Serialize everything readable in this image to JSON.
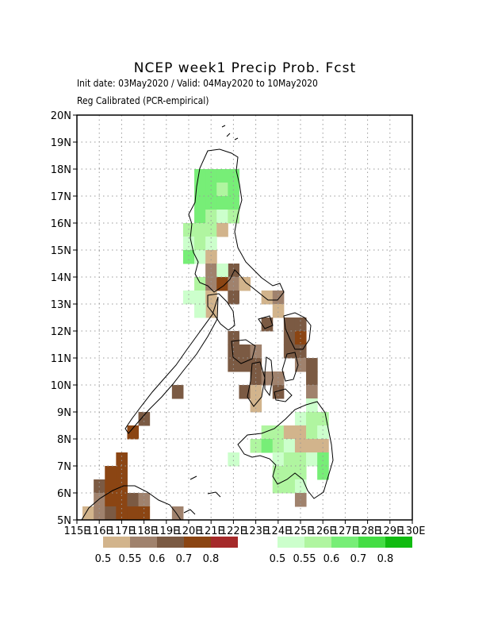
{
  "title": "NCEP week1 Precip Prob. Fcst",
  "subtitle_dates": "Init date: 03May2020 / Valid: 04May2020 to 10May2020",
  "subtitle_method": "Reg Calibrated (PCR-empirical)",
  "map": {
    "lon_range": [
      115,
      130
    ],
    "lat_range": [
      5,
      20
    ],
    "lat_ticks": [
      "5N",
      "6N",
      "7N",
      "8N",
      "9N",
      "10N",
      "11N",
      "12N",
      "13N",
      "14N",
      "15N",
      "16N",
      "17N",
      "18N",
      "19N",
      "20N"
    ],
    "lon_ticks": [
      "115E",
      "116E",
      "117E",
      "118E",
      "119E",
      "120E",
      "121E",
      "122E",
      "123E",
      "124E",
      "125E",
      "126E",
      "127E",
      "128E",
      "129E",
      "130E"
    ],
    "grid": "dotted",
    "colors": {
      "dry": [
        "#d2b48c",
        "#a0826d",
        "#7b5a43",
        "#8b4513",
        "#a52a2a"
      ],
      "wet": [
        "#ccffcc",
        "#b0f5a0",
        "#77ee77",
        "#44dd44",
        "#11bb11"
      ]
    }
  },
  "legend": {
    "dry_labels": [
      "0.5",
      "0.55",
      "0.6",
      "0.7",
      "0.8"
    ],
    "wet_labels": [
      "0.5",
      "0.55",
      "0.6",
      "0.7",
      "0.8"
    ]
  }
}
